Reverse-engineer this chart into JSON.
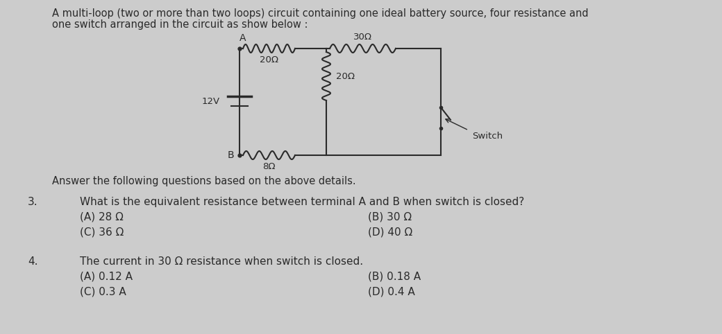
{
  "background_color": "#cccccc",
  "title_line1": "A multi-loop (two or more than two loops) circuit containing one ideal battery source, four resistance and",
  "title_line2": "one switch arranged in the circuit as show below :",
  "answer_intro": "Answer the following questions based on the above details.",
  "q3_num": "3.",
  "q3_text": "What is the equivalent resistance between terminal A and B when switch is closed?",
  "q3_A": "(A) 28 Ω",
  "q3_B": "(B) 30 Ω",
  "q3_C": "(C) 36 Ω",
  "q3_D": "(D) 40 Ω",
  "q4_num": "4.",
  "q4_text": "The current in 30 Ω resistance when switch is closed.",
  "q4_A": "(A) 0.12 A",
  "q4_B": "(B) 0.18 A",
  "q4_C": "(C) 0.3 A",
  "q4_D": "(D) 0.4 A",
  "label_A": "A",
  "label_B": "B",
  "label_12V": "12V",
  "label_20ohm_top": "20Ω",
  "label_30ohm": "30Ω",
  "label_20ohm_mid": "20Ω",
  "label_8ohm": "8Ω",
  "label_switch": "Switch",
  "text_color": "#2a2a2a",
  "circuit_color": "#2a2a2a",
  "font_size_title": 10.5,
  "font_size_body": 11,
  "font_size_label": 10,
  "font_size_circuit": 9.5
}
